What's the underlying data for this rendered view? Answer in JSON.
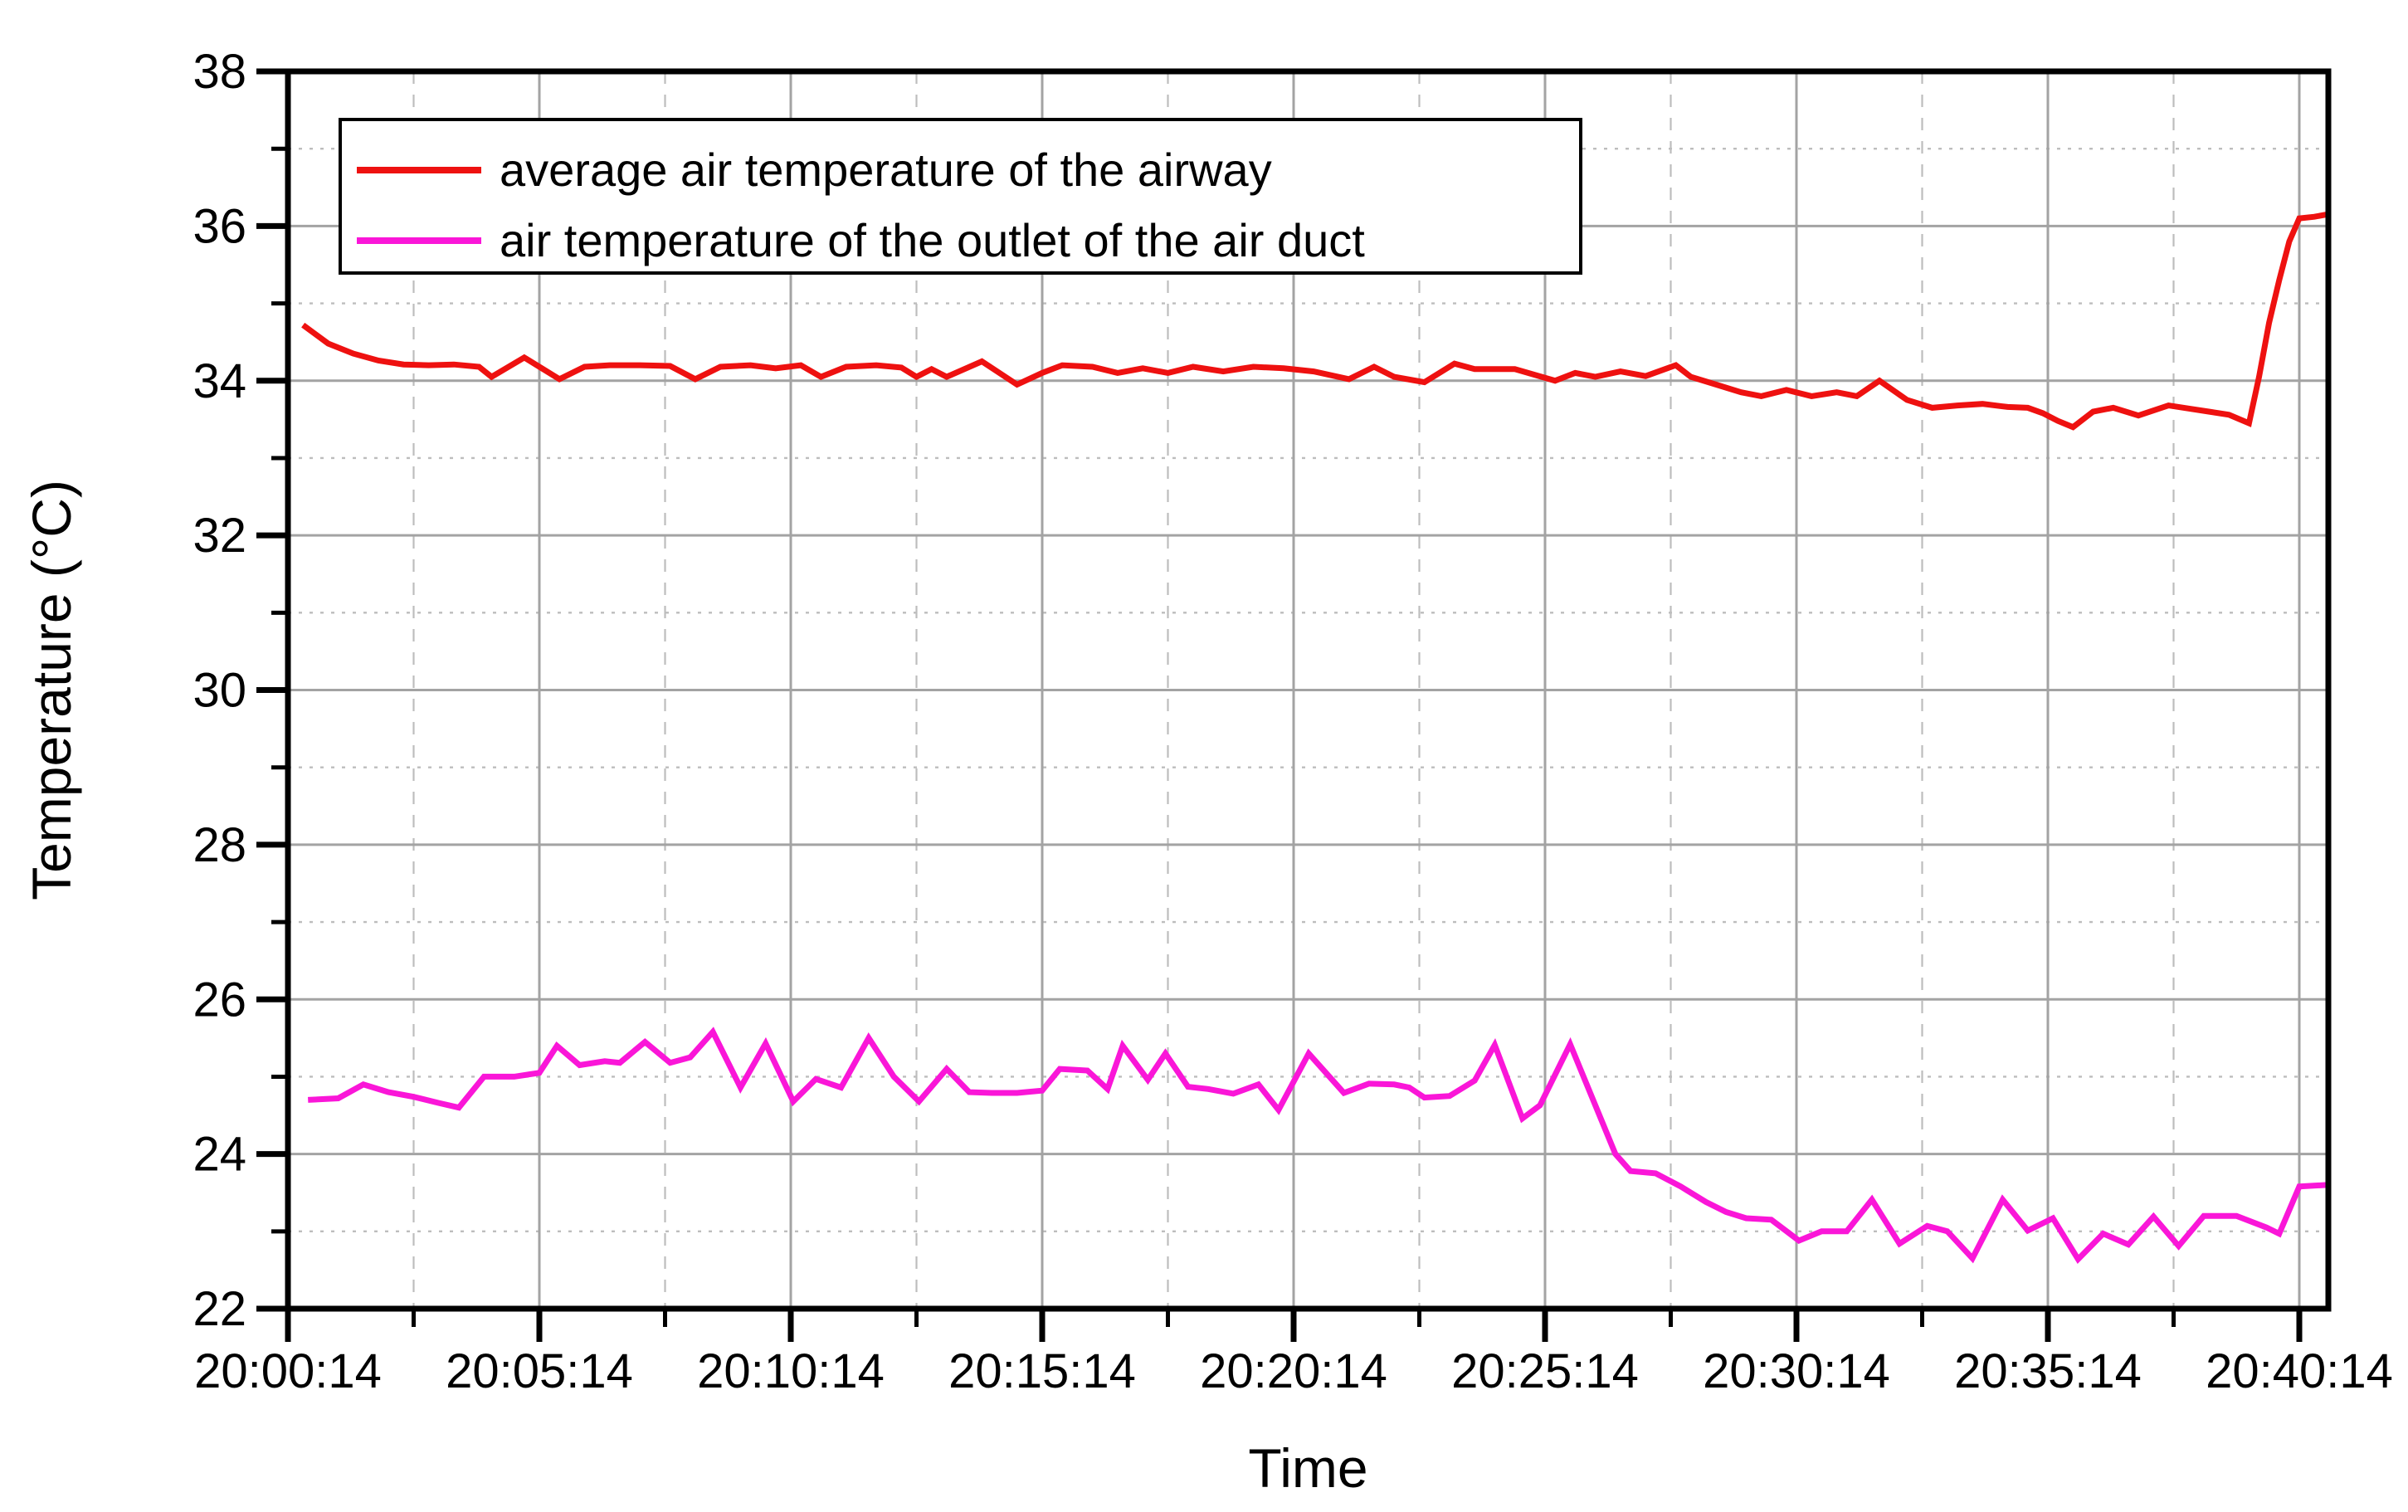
{
  "figure": {
    "background": "#ffffff",
    "border_color": "#000000",
    "grid_major_color": "#a3a3a3",
    "grid_minor_color": "#bdbdbd"
  },
  "chart_data": {
    "type": "line",
    "title": "",
    "xlabel": "Time",
    "ylabel": "Temperature (°C)",
    "legend_position": "top-left",
    "grid": {
      "major": true,
      "minor": true
    },
    "x_axis": {
      "unit": "minutes after 20:00:14",
      "min_minutes": 0,
      "max_minutes": 40.58,
      "major_tick_minutes": 5,
      "minor_tick_minutes": 2.5,
      "tick_minutes": [
        0,
        5,
        10,
        15,
        20,
        25,
        30,
        35,
        40
      ],
      "tick_labels": [
        "20:00:14",
        "20:05:14",
        "20:10:14",
        "20:15:14",
        "20:20:14",
        "20:25:14",
        "20:30:14",
        "20:35:14",
        "20:40:14"
      ]
    },
    "y_axis": {
      "min": 22,
      "max": 38,
      "major_step": 2,
      "minor_step": 1,
      "tick_values": [
        22,
        24,
        26,
        28,
        30,
        32,
        34,
        36,
        38
      ],
      "tick_labels": [
        "22",
        "24",
        "26",
        "28",
        "30",
        "32",
        "34",
        "36",
        "38"
      ]
    },
    "series": [
      {
        "name": "average air temperature of the airway",
        "color": "#ee1110",
        "line_width": 7,
        "points": [
          [
            0.3,
            34.72
          ],
          [
            0.8,
            34.48
          ],
          [
            1.3,
            34.35
          ],
          [
            1.8,
            34.26
          ],
          [
            2.3,
            34.21
          ],
          [
            2.8,
            34.2
          ],
          [
            3.3,
            34.21
          ],
          [
            3.8,
            34.18
          ],
          [
            4.05,
            34.05
          ],
          [
            4.7,
            34.3
          ],
          [
            5.4,
            34.02
          ],
          [
            5.9,
            34.18
          ],
          [
            6.4,
            34.2
          ],
          [
            7.0,
            34.2
          ],
          [
            7.6,
            34.19
          ],
          [
            8.1,
            34.02
          ],
          [
            8.6,
            34.18
          ],
          [
            9.2,
            34.2
          ],
          [
            9.7,
            34.16
          ],
          [
            10.2,
            34.2
          ],
          [
            10.6,
            34.05
          ],
          [
            11.1,
            34.18
          ],
          [
            11.7,
            34.2
          ],
          [
            12.2,
            34.17
          ],
          [
            12.5,
            34.05
          ],
          [
            12.8,
            34.15
          ],
          [
            13.1,
            34.05
          ],
          [
            13.8,
            34.25
          ],
          [
            14.5,
            33.95
          ],
          [
            15.0,
            34.1
          ],
          [
            15.4,
            34.2
          ],
          [
            16.0,
            34.18
          ],
          [
            16.5,
            34.1
          ],
          [
            17.0,
            34.16
          ],
          [
            17.5,
            34.1
          ],
          [
            18.0,
            34.18
          ],
          [
            18.6,
            34.12
          ],
          [
            19.2,
            34.18
          ],
          [
            19.8,
            34.16
          ],
          [
            20.4,
            34.12
          ],
          [
            21.1,
            34.02
          ],
          [
            21.6,
            34.18
          ],
          [
            22.0,
            34.05
          ],
          [
            22.6,
            33.98
          ],
          [
            23.2,
            34.22
          ],
          [
            23.6,
            34.15
          ],
          [
            24.4,
            34.15
          ],
          [
            25.2,
            34.0
          ],
          [
            25.6,
            34.1
          ],
          [
            26.0,
            34.05
          ],
          [
            26.5,
            34.12
          ],
          [
            27.0,
            34.06
          ],
          [
            27.6,
            34.2
          ],
          [
            27.9,
            34.05
          ],
          [
            28.4,
            33.95
          ],
          [
            28.9,
            33.85
          ],
          [
            29.3,
            33.8
          ],
          [
            29.8,
            33.88
          ],
          [
            30.3,
            33.8
          ],
          [
            30.8,
            33.85
          ],
          [
            31.2,
            33.8
          ],
          [
            31.65,
            34.0
          ],
          [
            32.2,
            33.75
          ],
          [
            32.7,
            33.65
          ],
          [
            33.2,
            33.68
          ],
          [
            33.7,
            33.7
          ],
          [
            34.2,
            33.66
          ],
          [
            34.6,
            33.65
          ],
          [
            34.9,
            33.58
          ],
          [
            35.2,
            33.48
          ],
          [
            35.5,
            33.4
          ],
          [
            35.9,
            33.6
          ],
          [
            36.3,
            33.65
          ],
          [
            36.8,
            33.55
          ],
          [
            37.4,
            33.68
          ],
          [
            37.8,
            33.64
          ],
          [
            38.2,
            33.6
          ],
          [
            38.6,
            33.56
          ],
          [
            39.0,
            33.45
          ],
          [
            39.2,
            34.05
          ],
          [
            39.4,
            34.75
          ],
          [
            39.6,
            35.3
          ],
          [
            39.8,
            35.8
          ],
          [
            40.0,
            36.1
          ],
          [
            40.3,
            36.12
          ],
          [
            40.55,
            36.15
          ]
        ]
      },
      {
        "name": "air temperature of the outlet of the air duct",
        "color": "#fa16d8",
        "line_width": 7,
        "points": [
          [
            0.4,
            24.7
          ],
          [
            1.0,
            24.72
          ],
          [
            1.5,
            24.9
          ],
          [
            2.0,
            24.8
          ],
          [
            2.5,
            24.74
          ],
          [
            3.0,
            24.66
          ],
          [
            3.4,
            24.6
          ],
          [
            3.9,
            25.0
          ],
          [
            4.5,
            25.0
          ],
          [
            5.0,
            25.05
          ],
          [
            5.35,
            25.4
          ],
          [
            5.8,
            25.15
          ],
          [
            6.3,
            25.2
          ],
          [
            6.6,
            25.18
          ],
          [
            7.1,
            25.45
          ],
          [
            7.6,
            25.18
          ],
          [
            8.0,
            25.25
          ],
          [
            8.45,
            25.58
          ],
          [
            9.0,
            24.86
          ],
          [
            9.5,
            25.43
          ],
          [
            10.05,
            24.68
          ],
          [
            10.5,
            24.97
          ],
          [
            11.0,
            24.86
          ],
          [
            11.55,
            25.5
          ],
          [
            12.05,
            25.0
          ],
          [
            12.55,
            24.68
          ],
          [
            13.1,
            25.1
          ],
          [
            13.55,
            24.8
          ],
          [
            14.0,
            24.79
          ],
          [
            14.5,
            24.79
          ],
          [
            15.0,
            24.82
          ],
          [
            15.35,
            25.1
          ],
          [
            15.9,
            25.08
          ],
          [
            16.3,
            24.84
          ],
          [
            16.6,
            25.4
          ],
          [
            17.1,
            24.96
          ],
          [
            17.45,
            25.3
          ],
          [
            17.9,
            24.87
          ],
          [
            18.3,
            24.84
          ],
          [
            18.8,
            24.78
          ],
          [
            19.3,
            24.9
          ],
          [
            19.7,
            24.57
          ],
          [
            20.3,
            25.3
          ],
          [
            21.0,
            24.79
          ],
          [
            21.5,
            24.91
          ],
          [
            22.0,
            24.9
          ],
          [
            22.3,
            24.86
          ],
          [
            22.6,
            24.73
          ],
          [
            23.1,
            24.75
          ],
          [
            23.6,
            24.95
          ],
          [
            24.0,
            25.41
          ],
          [
            24.55,
            24.46
          ],
          [
            24.9,
            24.63
          ],
          [
            25.5,
            25.42
          ],
          [
            26.4,
            24.0
          ],
          [
            26.7,
            23.78
          ],
          [
            27.2,
            23.75
          ],
          [
            27.7,
            23.58
          ],
          [
            28.2,
            23.38
          ],
          [
            28.6,
            23.25
          ],
          [
            29.0,
            23.17
          ],
          [
            29.5,
            23.15
          ],
          [
            30.05,
            22.88
          ],
          [
            30.5,
            23.0
          ],
          [
            31.0,
            23.0
          ],
          [
            31.5,
            23.41
          ],
          [
            32.05,
            22.84
          ],
          [
            32.6,
            23.07
          ],
          [
            33.0,
            23.0
          ],
          [
            33.5,
            22.65
          ],
          [
            34.1,
            23.41
          ],
          [
            34.6,
            23.01
          ],
          [
            35.1,
            23.17
          ],
          [
            35.6,
            22.64
          ],
          [
            36.1,
            22.97
          ],
          [
            36.6,
            22.83
          ],
          [
            37.1,
            23.19
          ],
          [
            37.6,
            22.81
          ],
          [
            38.1,
            23.2
          ],
          [
            38.75,
            23.2
          ],
          [
            39.35,
            23.05
          ],
          [
            39.6,
            22.97
          ],
          [
            40.0,
            23.58
          ],
          [
            40.55,
            23.6
          ]
        ]
      }
    ]
  }
}
